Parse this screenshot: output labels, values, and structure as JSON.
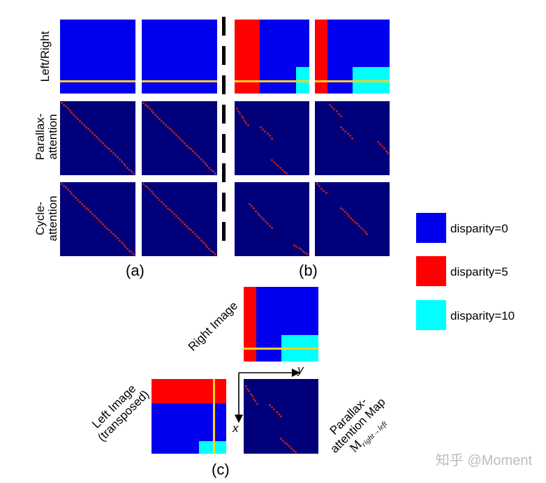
{
  "row_labels": {
    "row1": "Left/Right",
    "row2_line1": "Parallax-",
    "row2_line2": "attention",
    "row3_line1": "Cycle-",
    "row3_line2": "attention"
  },
  "captions": {
    "a": "(a)",
    "b": "(b)",
    "c": "(c)"
  },
  "legend": [
    {
      "label": "disparity=0",
      "color": "#0000ee"
    },
    {
      "label": "disparity=5",
      "color": "#ff0000"
    },
    {
      "label": "disparity=10",
      "color": "#00ffff"
    }
  ],
  "part_c": {
    "right_image_label": "Right Image",
    "left_image_line1": "Left Image",
    "left_image_line2": "(transposed)",
    "pam_line1": "Parallax-",
    "pam_line2": "attention Map",
    "pam_symbol": "M",
    "pam_subscript": "right→left",
    "axis_x": "x",
    "axis_y": "y"
  },
  "watermark": "知乎 @Moment",
  "colors": {
    "blue": "#0000ee",
    "navy": "#00007a",
    "red": "#ff0000",
    "cyan": "#00ffff",
    "line": "#ffd21a",
    "dot": "#b52020"
  }
}
